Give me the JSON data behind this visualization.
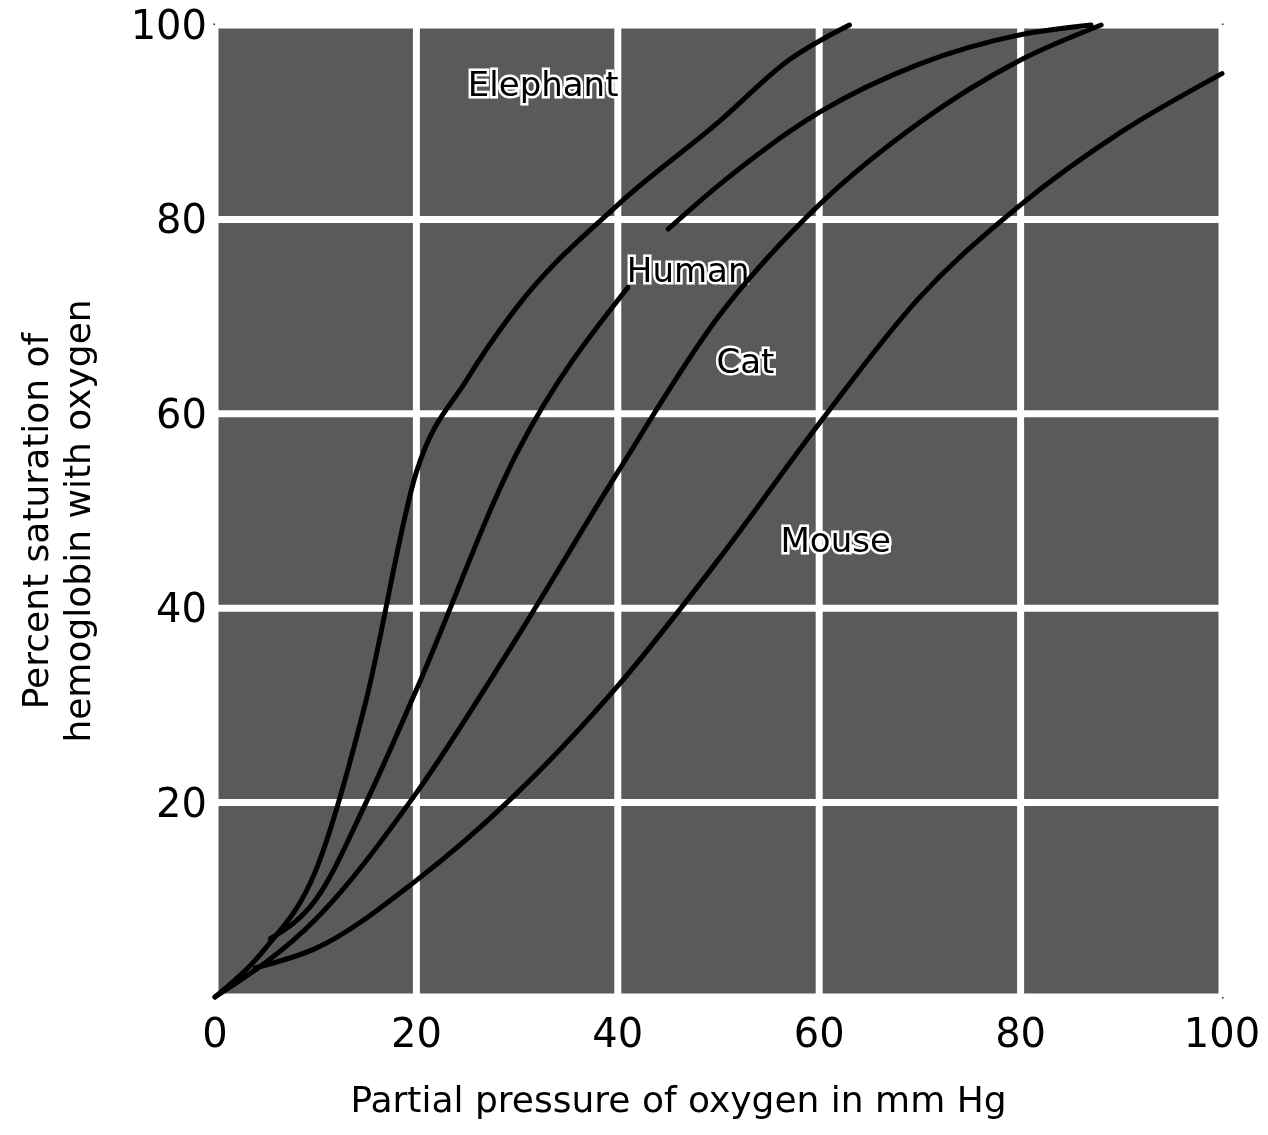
{
  "chart_data": {
    "type": "line",
    "xlabel": "Partial pressure of oxygen in mm Hg",
    "ylabel": "Percent saturation of\nhemoglobin with oxygen",
    "xlim": [
      0,
      100
    ],
    "ylim": [
      0,
      100
    ],
    "xticks": [
      0,
      20,
      40,
      60,
      80,
      100
    ],
    "yticks": [
      {
        "value": 0,
        "label": null
      },
      20,
      40,
      60,
      80,
      100
    ],
    "grid": true,
    "series": [
      {
        "name": "Elephant",
        "color": "#000000",
        "x": [
          0,
          5,
          10,
          15,
          20,
          25,
          30,
          40,
          50,
          57,
          63
        ],
        "values": [
          0,
          5,
          13,
          30.5,
          54,
          63.5,
          71,
          81.5,
          90,
          96.4,
          100
        ]
      },
      {
        "name": "Human",
        "color": "#000000",
        "x": [
          5.5,
          10,
          15,
          20,
          30,
          41,
          43,
          45,
          50,
          60,
          70,
          80,
          87
        ],
        "values": [
          6,
          10,
          20,
          31.6,
          56,
          73,
          null,
          79,
          83.5,
          91,
          96,
          99,
          100
        ]
      },
      {
        "name": "Cat",
        "color": "#000000",
        "x": [
          0,
          10,
          20,
          30,
          40,
          50,
          60,
          70,
          80,
          88
        ],
        "values": [
          0,
          8,
          21,
          37,
          54,
          70,
          81.5,
          90,
          96.4,
          100
        ]
      },
      {
        "name": "Mouse",
        "color": "#000000",
        "x": [
          4,
          10,
          20,
          30,
          40,
          50,
          60,
          70,
          80,
          90,
          100
        ],
        "values": [
          3,
          5,
          12,
          21,
          32,
          45,
          59,
          72,
          81.5,
          89,
          95
        ]
      }
    ]
  }
}
